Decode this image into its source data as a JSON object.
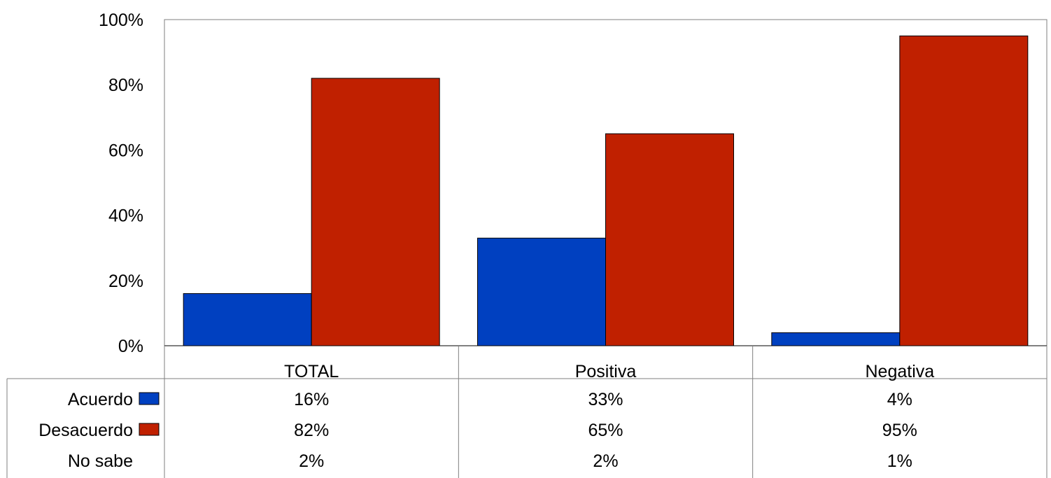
{
  "chart_data": {
    "type": "bar",
    "categories": [
      "TOTAL",
      "Positiva",
      "Negativa"
    ],
    "ylim": [
      0,
      100
    ],
    "y_ticks": [
      0,
      20,
      40,
      60,
      80,
      100
    ],
    "y_tick_labels": [
      "0%",
      "20%",
      "40%",
      "60%",
      "80%",
      "100%"
    ],
    "grid": false,
    "legend": "data-table",
    "series": [
      {
        "name": "Acuerdo",
        "values": [
          16,
          33,
          4
        ],
        "color": "#0040c0",
        "plotted": true
      },
      {
        "name": "Desacuerdo",
        "values": [
          82,
          65,
          95
        ],
        "color": "#c02000",
        "plotted": true
      },
      {
        "name": "No sabe",
        "values": [
          2,
          2,
          1
        ],
        "color": null,
        "plotted": false
      }
    ],
    "table_labels": [
      [
        "16%",
        "33%",
        "4%"
      ],
      [
        "82%",
        "65%",
        "95%"
      ],
      [
        "2%",
        "2%",
        "1%"
      ]
    ]
  }
}
